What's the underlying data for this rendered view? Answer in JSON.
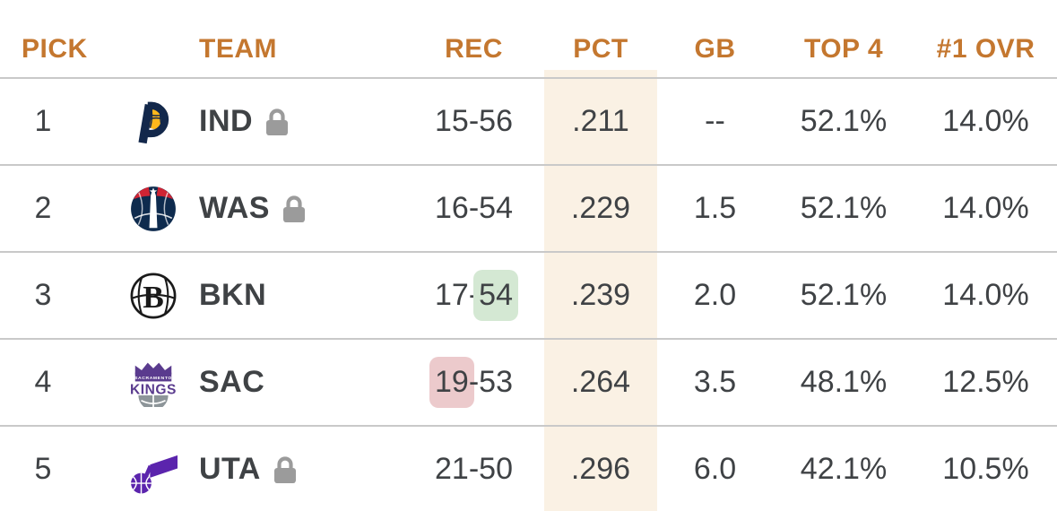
{
  "table": {
    "record_separator": "-",
    "columns": [
      {
        "key": "pick",
        "label": "PICK"
      },
      {
        "key": "team",
        "label": "TEAM"
      },
      {
        "key": "rec",
        "label": "REC"
      },
      {
        "key": "pct",
        "label": "PCT"
      },
      {
        "key": "gb",
        "label": "GB"
      },
      {
        "key": "top4",
        "label": "TOP 4"
      },
      {
        "key": "ovr",
        "label": "#1 OVR"
      }
    ],
    "rows": [
      {
        "pick": "1",
        "team_abbr": "IND",
        "logo_icon": "pacers-logo",
        "logo_letter": "P",
        "locked": true,
        "rec": {
          "wins": "15",
          "losses": "56",
          "highlight": null,
          "highlight_color": null
        },
        "pct": ".211",
        "gb": "--",
        "top4": "52.1%",
        "ovr": "14.0%"
      },
      {
        "pick": "2",
        "team_abbr": "WAS",
        "logo_icon": "wizards-logo",
        "locked": true,
        "rec": {
          "wins": "16",
          "losses": "54",
          "highlight": null,
          "highlight_color": null
        },
        "pct": ".229",
        "gb": "1.5",
        "top4": "52.1%",
        "ovr": "14.0%"
      },
      {
        "pick": "3",
        "team_abbr": "BKN",
        "logo_icon": "nets-logo",
        "logo_letter": "B",
        "locked": false,
        "rec": {
          "wins": "17",
          "losses": "54",
          "highlight": "losses",
          "highlight_color": "green"
        },
        "pct": ".239",
        "gb": "2.0",
        "top4": "52.1%",
        "ovr": "14.0%"
      },
      {
        "pick": "4",
        "team_abbr": "SAC",
        "logo_icon": "kings-logo",
        "logo_text_top": "SACRAMENTO",
        "logo_text_main": "KINGS",
        "locked": false,
        "rec": {
          "wins": "19",
          "losses": "53",
          "highlight": "wins",
          "highlight_color": "red"
        },
        "pct": ".264",
        "gb": "3.5",
        "top4": "48.1%",
        "ovr": "12.5%"
      },
      {
        "pick": "5",
        "team_abbr": "UTA",
        "logo_icon": "jazz-logo",
        "locked": true,
        "rec": {
          "wins": "21",
          "losses": "50",
          "highlight": null,
          "highlight_color": null
        },
        "pct": ".296",
        "gb": "6.0",
        "top4": "42.1%",
        "ovr": "10.5%"
      }
    ]
  },
  "icons": {
    "lock": "lock-icon"
  },
  "colors": {
    "header_text": "#c4772f",
    "body_text": "#3f4245",
    "pct_band": "#faf1e4",
    "highlight_green": "#d4e8d3",
    "highlight_red": "#eccacc",
    "divider": "#c9c9c9",
    "lock": "#9b9b9b"
  },
  "logo_colors": {
    "pacers_navy": "#13284b",
    "pacers_gold": "#ffb81c",
    "wizards_navy": "#0e2b4e",
    "wizards_red": "#cf2434",
    "nets_black": "#1a1a1a",
    "kings_purple": "#5a3b8e",
    "kings_gray": "#8d9599",
    "jazz_purple": "#5b24ad"
  }
}
